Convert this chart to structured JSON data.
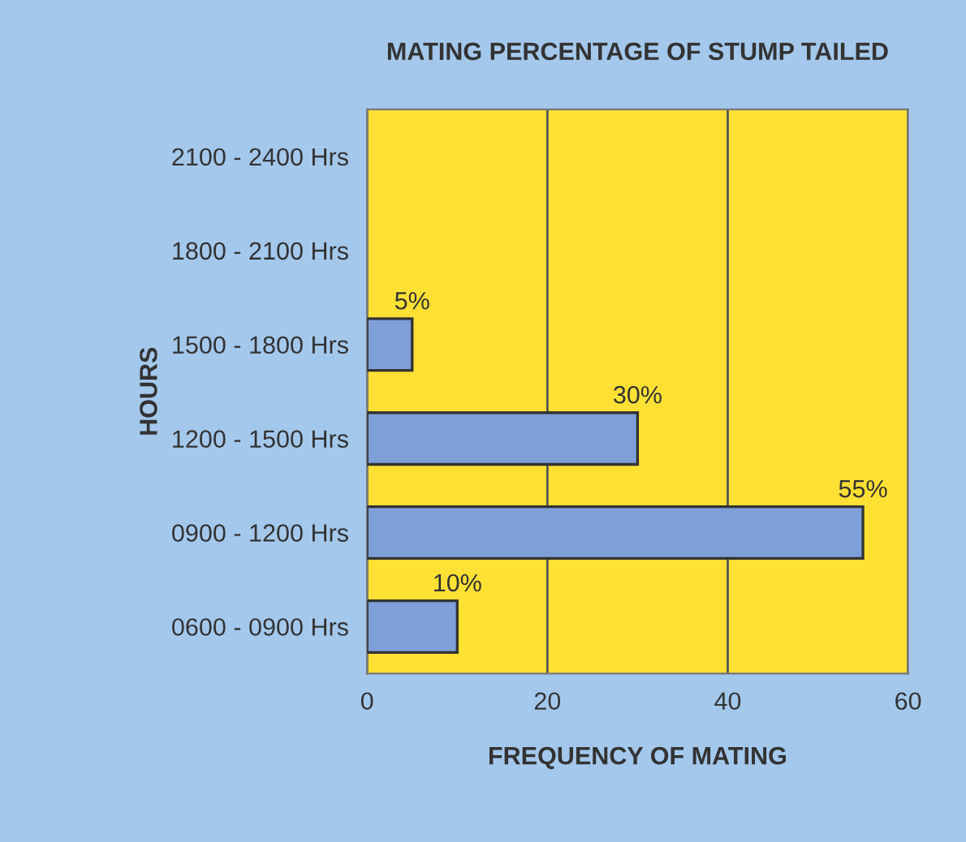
{
  "chart_data": {
    "type": "bar",
    "orientation": "horizontal",
    "title": "MATING PERCENTAGE OF STUMP TAILED",
    "xlabel": "FREQUENCY OF MATING",
    "ylabel": "HOURS",
    "categories": [
      "2100 - 2400 Hrs",
      "1800 - 2100 Hrs",
      "1500 - 1800 Hrs",
      "1200 - 1500 Hrs",
      "0900 - 1200 Hrs",
      "0600 - 0900 Hrs"
    ],
    "values": [
      0,
      0,
      5,
      30,
      55,
      10
    ],
    "value_labels": [
      null,
      null,
      "5%",
      "30%",
      "55%",
      "10%"
    ],
    "color": "#7f9fd8",
    "xlim": [
      0,
      60
    ],
    "xticks": [
      0,
      20,
      40,
      60
    ],
    "grid": "x",
    "legend": false
  }
}
